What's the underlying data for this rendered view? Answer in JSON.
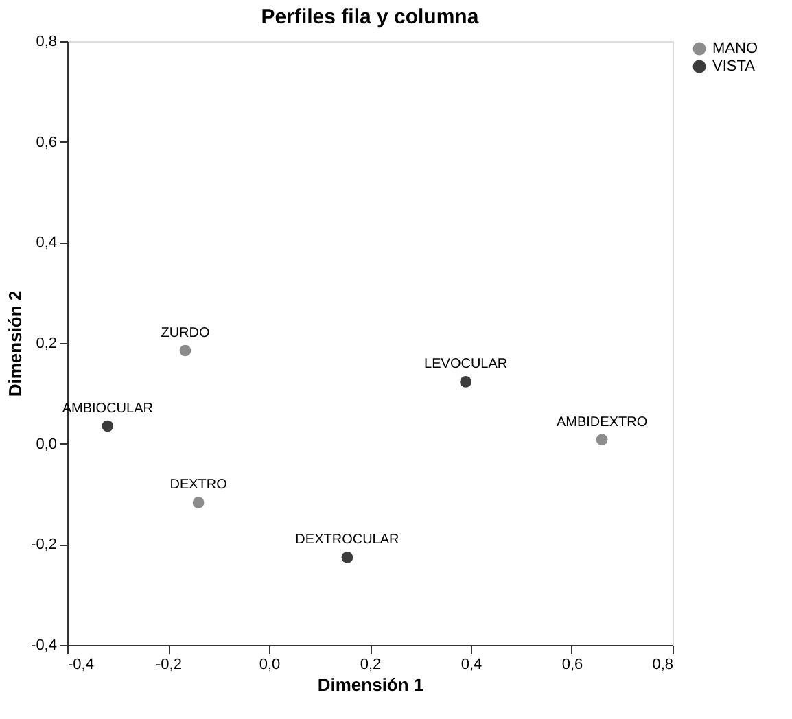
{
  "chart_data": {
    "type": "scatter",
    "title": "Perfiles fila y columna",
    "xlabel": "Dimensión 1",
    "ylabel": "Dimensión 2",
    "series": [
      {
        "name": "MANO",
        "color": "#8c8c8c",
        "x": [
          -0.166,
          -0.14,
          0.66
        ],
        "values": [
          0.185,
          -0.117,
          0.008
        ]
      },
      {
        "name": "VISTA",
        "color": "#3c3c3c",
        "x": [
          -0.32,
          0.155,
          0.39
        ],
        "values": [
          0.035,
          -0.226,
          0.123
        ]
      }
    ],
    "annotations": [
      {
        "text": "ZURDO",
        "x": -0.166,
        "y": 0.185
      },
      {
        "text": "DEXTRO",
        "x": -0.14,
        "y": -0.117
      },
      {
        "text": "AMBIDEXTRO",
        "x": 0.66,
        "y": 0.008
      },
      {
        "text": "AMBIOCULAR",
        "x": -0.32,
        "y": 0.035
      },
      {
        "text": "DEXTROCULAR",
        "x": 0.155,
        "y": -0.226
      },
      {
        "text": "LEVOCULAR",
        "x": 0.39,
        "y": 0.123
      }
    ],
    "xlim": [
      -0.4,
      0.8
    ],
    "xticks": [
      {
        "value": -0.4,
        "label": "-0,4"
      },
      {
        "value": -0.2,
        "label": "-0,2"
      },
      {
        "value": 0.0,
        "label": "0,0"
      },
      {
        "value": 0.2,
        "label": "0,2"
      },
      {
        "value": 0.4,
        "label": "0,4"
      },
      {
        "value": 0.6,
        "label": "0,6"
      },
      {
        "value": 0.8,
        "label": "0,8"
      }
    ],
    "ylim": [
      -0.4,
      0.8
    ],
    "yticks": [
      {
        "value": -0.4,
        "label": "-0,4"
      },
      {
        "value": -0.2,
        "label": "-0,2"
      },
      {
        "value": 0.0,
        "label": "0,0"
      },
      {
        "value": 0.2,
        "label": "0,2"
      },
      {
        "value": 0.4,
        "label": "0,4"
      },
      {
        "value": 0.6,
        "label": "0,6"
      },
      {
        "value": 0.8,
        "label": "0,8"
      }
    ],
    "grid": false,
    "legend": "top right",
    "marker": "circle"
  }
}
